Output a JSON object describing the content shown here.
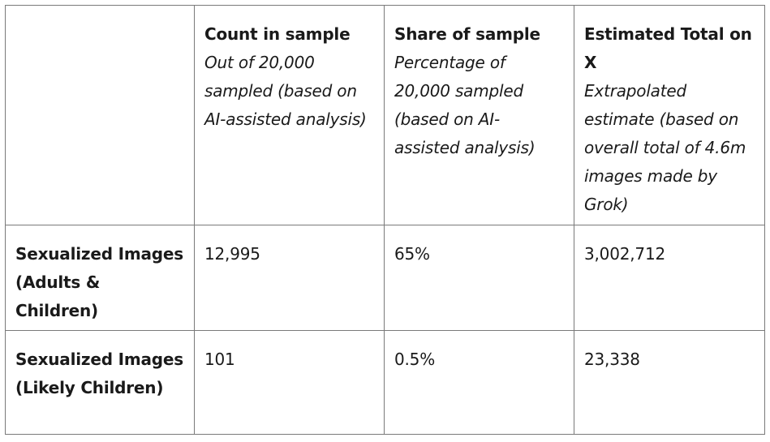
{
  "table": {
    "columns": [
      {
        "title": "",
        "subtitle": ""
      },
      {
        "title": "Count in sample",
        "subtitle": "Out of 20,000 sampled (based on AI-assisted analysis)"
      },
      {
        "title": "Share of sample",
        "subtitle": "Percentage of 20,000 sampled (based on AI-assisted analysis)"
      },
      {
        "title": "Estimated Total on X",
        "subtitle": "Extrapolated estimate (based on overall total of 4.6m images made by Grok)"
      }
    ],
    "rows": [
      {
        "label": "Sexualized Images (Adults & Children)",
        "count": "12,995",
        "share": "65%",
        "estimate": "3,002,712"
      },
      {
        "label": "Sexualized Images (Likely Children)",
        "count": "101",
        "share": "0.5%",
        "estimate": "23,338"
      }
    ]
  }
}
